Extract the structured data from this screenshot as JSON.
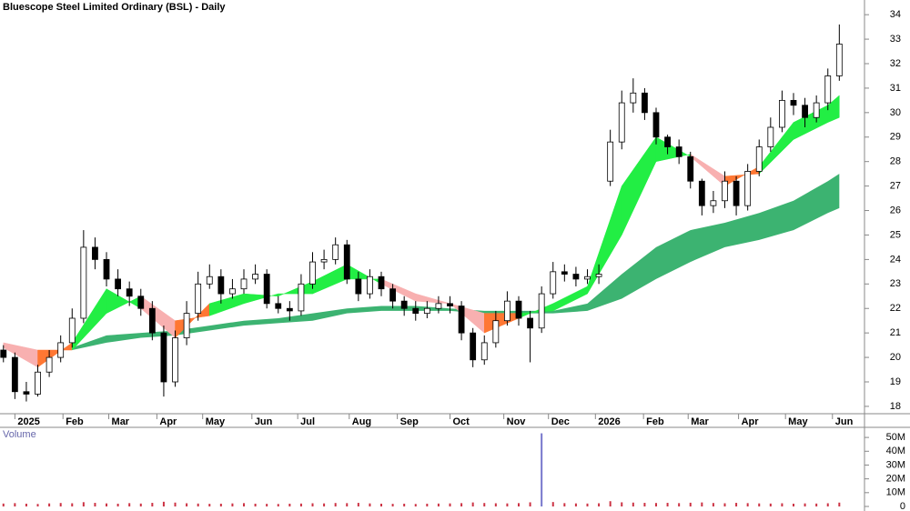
{
  "chart_data": [
    {
      "type": "candlestick",
      "title": "Bluescope Steel Limited Ordinary (BSL) - Daily",
      "xlim": [
        -0.3,
        75.2
      ],
      "xticks": [
        {
          "value": 1,
          "label": "2025"
        },
        {
          "value": 5.2,
          "label": "Feb"
        },
        {
          "value": 9.2,
          "label": "Mar"
        },
        {
          "value": 13.4,
          "label": "Apr"
        },
        {
          "value": 17.4,
          "label": "May"
        },
        {
          "value": 21.7,
          "label": "Jun"
        },
        {
          "value": 25.7,
          "label": "Jul"
        },
        {
          "value": 30.2,
          "label": "Aug"
        },
        {
          "value": 34.4,
          "label": "Sep"
        },
        {
          "value": 39,
          "label": "Oct"
        },
        {
          "value": 43.7,
          "label": "Nov"
        },
        {
          "value": 47.6,
          "label": "Dec"
        },
        {
          "value": 51.7,
          "label": "2026"
        },
        {
          "value": 55.9,
          "label": "Feb"
        },
        {
          "value": 59.8,
          "label": "Mar"
        },
        {
          "value": 64.2,
          "label": "Apr"
        },
        {
          "value": 68.3,
          "label": "May"
        },
        {
          "value": 72.4,
          "label": "Jun"
        }
      ],
      "ylim": [
        17.7,
        34.6
      ],
      "yticks": [
        18,
        19,
        20,
        21,
        22,
        23,
        24,
        25,
        26,
        27,
        28,
        29,
        30,
        31,
        32,
        33,
        34
      ],
      "open": [
        20.3,
        20.0,
        18.6,
        18.5,
        19.4,
        20.0,
        20.6,
        21.6,
        24.5,
        24.0,
        23.2,
        22.8,
        22.5,
        22.0,
        21.0,
        19.0,
        20.8,
        21.8,
        23.0,
        23.3,
        22.6,
        22.8,
        23.2,
        23.4,
        22.2,
        22.0,
        21.9,
        23.0,
        23.9,
        24.0,
        24.6,
        23.2,
        22.6,
        23.3,
        22.8,
        22.3,
        22.0,
        21.8,
        22.0,
        22.2,
        22.1,
        21.0,
        19.9,
        20.6,
        21.5,
        22.3,
        21.6,
        21.2,
        22.6,
        23.5,
        23.4,
        23.2,
        23.3,
        27.2,
        28.8,
        30.4,
        30.8,
        30.0,
        29.0,
        28.6,
        28.2,
        27.2,
        26.2,
        26.4,
        27.2,
        26.2,
        27.6,
        28.6,
        29.4,
        30.5,
        30.3,
        29.8,
        30.4,
        31.5
      ],
      "high": [
        20.5,
        20.2,
        19.0,
        19.7,
        20.3,
        20.9,
        22.0,
        25.2,
        24.9,
        24.3,
        23.6,
        23.1,
        22.8,
        22.3,
        21.3,
        21.1,
        22.3,
        23.5,
        23.8,
        23.6,
        23.2,
        23.6,
        23.8,
        23.6,
        22.5,
        22.3,
        23.4,
        24.3,
        24.4,
        24.9,
        24.8,
        23.5,
        23.6,
        23.5,
        23.0,
        22.5,
        22.3,
        22.3,
        22.5,
        22.5,
        22.3,
        21.2,
        20.9,
        21.9,
        22.7,
        22.5,
        21.9,
        22.9,
        23.9,
        23.8,
        23.7,
        23.6,
        23.8,
        29.3,
        30.9,
        31.4,
        31.0,
        30.2,
        29.1,
        28.9,
        28.4,
        27.3,
        26.8,
        27.6,
        27.4,
        27.9,
        28.9,
        29.8,
        30.9,
        30.8,
        30.6,
        30.7,
        31.8,
        33.6
      ],
      "low": [
        19.8,
        18.3,
        18.2,
        18.4,
        19.2,
        19.8,
        20.4,
        21.4,
        23.6,
        22.9,
        22.5,
        22.1,
        21.7,
        20.7,
        18.4,
        18.8,
        20.5,
        21.5,
        22.8,
        22.2,
        22.4,
        22.6,
        23.0,
        22.0,
        21.8,
        21.5,
        21.7,
        22.8,
        23.6,
        23.8,
        23.0,
        22.3,
        22.4,
        22.5,
        22.0,
        21.7,
        21.5,
        21.6,
        21.8,
        21.8,
        20.7,
        19.6,
        19.7,
        20.4,
        21.3,
        21.3,
        19.8,
        21.0,
        22.4,
        23.1,
        22.9,
        23.0,
        23.0,
        27.0,
        28.5,
        30.0,
        29.7,
        28.7,
        28.3,
        27.9,
        26.9,
        25.8,
        25.9,
        26.1,
        25.8,
        26.0,
        27.4,
        28.4,
        29.2,
        29.9,
        29.4,
        29.6,
        30.1,
        31.3
      ],
      "close": [
        20.0,
        18.6,
        18.5,
        19.4,
        20.0,
        20.6,
        21.6,
        24.5,
        24.0,
        23.2,
        22.8,
        22.5,
        22.0,
        21.0,
        19.0,
        20.8,
        21.8,
        23.0,
        23.3,
        22.6,
        22.8,
        23.2,
        23.4,
        22.2,
        22.0,
        21.9,
        23.0,
        23.9,
        24.0,
        24.6,
        23.2,
        22.6,
        23.3,
        22.8,
        22.3,
        22.0,
        21.8,
        22.0,
        22.2,
        22.1,
        21.0,
        19.9,
        20.6,
        21.5,
        22.3,
        21.6,
        21.2,
        22.6,
        23.5,
        23.4,
        23.2,
        23.3,
        23.4,
        28.8,
        30.4,
        30.8,
        30.0,
        29.0,
        28.6,
        28.2,
        27.2,
        26.2,
        26.4,
        27.2,
        26.2,
        27.6,
        28.6,
        29.4,
        30.5,
        30.3,
        29.8,
        30.4,
        31.5,
        32.8
      ],
      "ribbon_x": [
        0,
        3,
        6,
        9,
        12,
        15,
        18,
        21,
        24,
        27,
        30,
        33,
        36,
        39,
        42,
        45,
        48,
        51,
        54,
        57,
        60,
        63,
        66,
        69,
        72,
        73
      ],
      "short_ribbon": {
        "fast": [
          20.4,
          19.6,
          20.6,
          22.8,
          22.0,
          20.8,
          22.2,
          22.6,
          22.5,
          23.1,
          23.8,
          23.0,
          22.3,
          22.2,
          21.0,
          21.6,
          22.2,
          22.9,
          27.0,
          29.0,
          28.2,
          27.0,
          27.8,
          29.6,
          30.3,
          30.7
        ],
        "slow": [
          20.6,
          20.3,
          20.3,
          21.8,
          22.5,
          21.5,
          21.7,
          22.2,
          22.6,
          22.6,
          23.2,
          23.2,
          22.6,
          22.2,
          21.8,
          21.8,
          21.9,
          22.6,
          25.0,
          28.0,
          28.3,
          27.4,
          27.5,
          28.9,
          29.6,
          29.8
        ],
        "up_color": "#22ee44",
        "down_color": "#ff7733",
        "weak_color": "#f8b0b0"
      },
      "long_ribbon": {
        "color": "#3cb371",
        "upper": [
          null,
          null,
          20.4,
          20.9,
          21.0,
          21.1,
          21.3,
          21.5,
          21.6,
          21.8,
          22.0,
          22.1,
          22.1,
          22.0,
          21.9,
          21.9,
          21.9,
          22.2,
          23.4,
          24.5,
          25.2,
          25.5,
          25.9,
          26.4,
          27.2,
          27.5
        ],
        "lower": [
          null,
          null,
          20.3,
          20.6,
          20.8,
          20.9,
          21.1,
          21.3,
          21.4,
          21.5,
          21.8,
          21.9,
          21.9,
          21.9,
          21.8,
          21.8,
          21.8,
          21.9,
          22.4,
          23.2,
          23.9,
          24.5,
          24.8,
          25.2,
          25.9,
          26.1
        ]
      }
    },
    {
      "type": "volume",
      "title": "Volume",
      "color": "#cc3344",
      "spike_color": "#7777cc",
      "ylim": [
        0,
        56
      ],
      "yticks": [
        {
          "value": 0,
          "label": "0"
        },
        {
          "value": 10,
          "label": "10M"
        },
        {
          "value": 20,
          "label": "20M"
        },
        {
          "value": 30,
          "label": "30M"
        },
        {
          "value": 40,
          "label": "40M"
        },
        {
          "value": 50,
          "label": "50M"
        }
      ],
      "values": [
        2.1,
        2.4,
        2.0,
        1.8,
        2.2,
        2.5,
        2.3,
        3.1,
        2.6,
        2.2,
        2.0,
        2.4,
        2.1,
        2.6,
        3.4,
        2.8,
        2.3,
        2.1,
        1.9,
        2.0,
        2.2,
        2.4,
        2.0,
        1.9,
        1.8,
        2.0,
        2.1,
        2.3,
        2.2,
        2.5,
        2.4,
        2.6,
        2.2,
        2.0,
        1.9,
        2.0,
        1.8,
        2.0,
        2.1,
        2.2,
        2.4,
        2.9,
        2.5,
        2.3,
        2.2,
        2.4,
        3.0,
        53.0,
        3.2,
        2.4,
        2.2,
        2.1,
        2.3,
        3.8,
        3.0,
        2.8,
        2.6,
        2.5,
        2.6,
        2.4,
        2.7,
        2.9,
        2.5,
        2.3,
        2.6,
        2.4,
        2.2,
        2.1,
        2.3,
        2.0,
        2.2,
        2.1,
        2.3,
        2.8
      ]
    }
  ]
}
